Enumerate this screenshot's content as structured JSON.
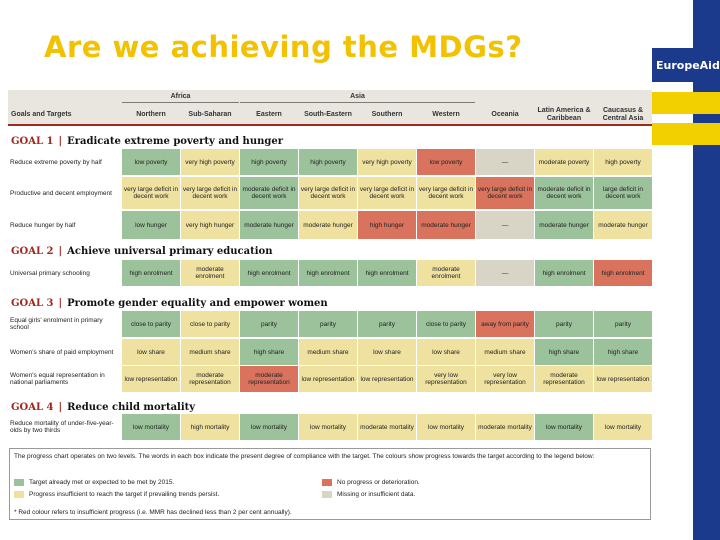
{
  "title": "Are we achieving the MDGs?",
  "brand": "EuropeAid",
  "colors": {
    "title": "#f2c100",
    "green": "#9bc29a",
    "yellow": "#efe1a0",
    "red": "#d9735d",
    "grey": "#d8d4c6",
    "goal_accent": "#a2281c"
  },
  "table": {
    "group_headers": [
      "Africa",
      "Asia"
    ],
    "corner_label": "Goals and Targets",
    "columns": [
      "Northern",
      "Sub-Saharan",
      "Eastern",
      "South-Eastern",
      "Southern",
      "Western",
      "Oceania",
      "Latin America & Caribbean",
      "Caucasus & Central Asia"
    ],
    "goals": [
      {
        "num": "GOAL 1",
        "sep": "|",
        "title": "Eradicate extreme poverty and hunger",
        "rows": [
          {
            "label": "Reduce extreme poverty by half",
            "cells": [
              [
                "low poverty",
                "g"
              ],
              [
                "very high poverty",
                "y"
              ],
              [
                "high poverty",
                "g"
              ],
              [
                "high poverty",
                "g"
              ],
              [
                "very high poverty",
                "y"
              ],
              [
                "low poverty",
                "r"
              ],
              [
                "—",
                "n"
              ],
              [
                "moderate poverty",
                "y"
              ],
              [
                "high poverty",
                "y"
              ]
            ]
          },
          {
            "label": "Productive and decent employment",
            "cells": [
              [
                "very large deficit in decent work",
                "y"
              ],
              [
                "very large deficit in decent work",
                "y"
              ],
              [
                "moderate deficit in decent work",
                "g"
              ],
              [
                "very large deficit in decent work",
                "y"
              ],
              [
                "very large deficit in decent work",
                "y"
              ],
              [
                "very large deficit in decent work",
                "y"
              ],
              [
                "very large deficit in decent work",
                "r"
              ],
              [
                "moderate deficit in decent work",
                "g"
              ],
              [
                "large deficit in decent work",
                "g"
              ]
            ]
          },
          {
            "label": "Reduce hunger by half",
            "cells": [
              [
                "low hunger",
                "g"
              ],
              [
                "very high hunger",
                "y"
              ],
              [
                "moderate hunger",
                "g"
              ],
              [
                "moderate hunger",
                "y"
              ],
              [
                "high hunger",
                "r"
              ],
              [
                "moderate hunger",
                "r"
              ],
              [
                "—",
                "n"
              ],
              [
                "moderate hunger",
                "g"
              ],
              [
                "moderate hunger",
                "y"
              ]
            ]
          }
        ]
      },
      {
        "num": "GOAL 2",
        "sep": "|",
        "title": "Achieve universal primary education",
        "rows": [
          {
            "label": "Universal primary schooling",
            "cells": [
              [
                "high enrolment",
                "g"
              ],
              [
                "moderate enrolment",
                "y"
              ],
              [
                "high enrolment",
                "g"
              ],
              [
                "high enrolment",
                "g"
              ],
              [
                "high enrolment",
                "g"
              ],
              [
                "moderate enrolment",
                "y"
              ],
              [
                "—",
                "n"
              ],
              [
                "high enrolment",
                "g"
              ],
              [
                "high enrolment",
                "r"
              ]
            ]
          }
        ]
      },
      {
        "num": "GOAL 3",
        "sep": "|",
        "title": "Promote gender equality and empower women",
        "rows": [
          {
            "label": "Equal girls' enrolment in primary school",
            "cells": [
              [
                "close to parity",
                "g"
              ],
              [
                "close to parity",
                "y"
              ],
              [
                "parity",
                "g"
              ],
              [
                "parity",
                "g"
              ],
              [
                "parity",
                "g"
              ],
              [
                "close to parity",
                "g"
              ],
              [
                "away from parity",
                "r"
              ],
              [
                "parity",
                "g"
              ],
              [
                "parity",
                "g"
              ]
            ]
          },
          {
            "label": "Women's share of paid employment",
            "cells": [
              [
                "low share",
                "y"
              ],
              [
                "medium share",
                "y"
              ],
              [
                "high share",
                "g"
              ],
              [
                "medium share",
                "y"
              ],
              [
                "low share",
                "y"
              ],
              [
                "low share",
                "y"
              ],
              [
                "medium share",
                "y"
              ],
              [
                "high share",
                "g"
              ],
              [
                "high share",
                "g"
              ]
            ]
          },
          {
            "label": "Women's equal representation in national parliaments",
            "cells": [
              [
                "low representation",
                "y"
              ],
              [
                "moderate representation",
                "y"
              ],
              [
                "moderate representation",
                "r"
              ],
              [
                "low representation",
                "y"
              ],
              [
                "low representation",
                "y"
              ],
              [
                "very low representation",
                "y"
              ],
              [
                "very low representation",
                "y"
              ],
              [
                "moderate representation",
                "y"
              ],
              [
                "low representation",
                "y"
              ]
            ]
          }
        ]
      },
      {
        "num": "GOAL 4",
        "sep": "|",
        "title": "Reduce child mortality",
        "rows": [
          {
            "label": "Reduce mortality of under-five-year-olds by two thirds",
            "cells": [
              [
                "low mortality",
                "g"
              ],
              [
                "high mortality",
                "y"
              ],
              [
                "low mortality",
                "g"
              ],
              [
                "low mortality",
                "y"
              ],
              [
                "moderate mortality",
                "y"
              ],
              [
                "low mortality",
                "y"
              ],
              [
                "moderate mortality",
                "y"
              ],
              [
                "low mortality",
                "g"
              ],
              [
                "low mortality",
                "y"
              ]
            ]
          }
        ]
      }
    ]
  },
  "legend": {
    "intro": "The progress chart operates on two levels. The words in each box indicate the present degree of compliance with the target. The colours show progress towards the target according to the legend below:",
    "items": [
      {
        "text": "Target already met or expected to be met by 2015.",
        "color": "green"
      },
      {
        "text": "Progress insufficient to reach the target if prevailing trends persist.",
        "color": "yellow"
      },
      {
        "text": "No progress or deterioration.",
        "color": "red"
      },
      {
        "text": "Missing or insufficient data.",
        "color": "grey"
      }
    ],
    "note": "* Red colour refers to insufficient progress (i.e. MMR has declined less than 2 per cent annually)."
  }
}
